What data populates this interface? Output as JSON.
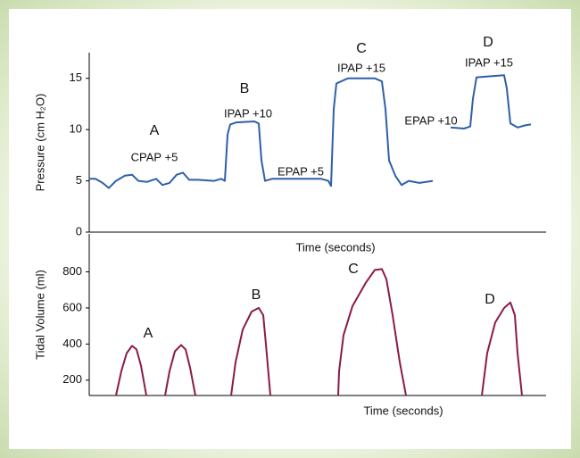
{
  "chart_data": [
    {
      "type": "line",
      "y_label": "Pressure (cm H₂O)",
      "x_label": "Time (seconds)",
      "xlim": [
        0,
        512
      ],
      "ylim": [
        0,
        17.5
      ],
      "yticks": [
        0,
        5,
        10,
        15
      ],
      "annotations": [
        "A",
        "CPAP  +5",
        "B",
        "IPAP +10",
        "EPAP +5",
        "C",
        "IPAP +15",
        "EPAP +10",
        "D",
        "IPAP +15"
      ],
      "series": [
        {
          "color": "#2f5fa8",
          "x": [
            0,
            7,
            15,
            22,
            30,
            40,
            48,
            55,
            65,
            75,
            82,
            90,
            98,
            105,
            112,
            122,
            140,
            148,
            152,
            155,
            158,
            165,
            185,
            190,
            193,
            197,
            205,
            230,
            260,
            268,
            271,
            274,
            277,
            290,
            320,
            328,
            332,
            336,
            343,
            350,
            358,
            370,
            385,
            null,
            405,
            420,
            427,
            430,
            434,
            450,
            465,
            468,
            472,
            480,
            488,
            495
          ],
          "values": [
            5.2,
            5.2,
            4.8,
            4.3,
            5.0,
            5.5,
            5.6,
            5.0,
            4.9,
            5.2,
            4.6,
            4.8,
            5.6,
            5.8,
            5.1,
            5.1,
            5.0,
            5.2,
            5.0,
            9.5,
            10.5,
            10.7,
            10.8,
            10.6,
            7.0,
            5.0,
            5.2,
            5.2,
            5.2,
            5.0,
            4.5,
            12,
            14.5,
            15.0,
            15.0,
            14.7,
            12,
            7,
            5.5,
            4.6,
            5.0,
            4.8,
            5.0,
            null,
            10.2,
            10.1,
            10.3,
            13,
            15.1,
            15.2,
            15.3,
            14,
            10.6,
            10.2,
            10.4,
            10.5
          ]
        }
      ]
    },
    {
      "type": "line",
      "y_label": "Tidal Volume (ml)",
      "x_label": "Time (seconds)",
      "xlim": [
        0,
        512
      ],
      "ylim": [
        115,
        1010
      ],
      "yticks": [
        200,
        400,
        600,
        800
      ],
      "annotations": [
        "A",
        "B",
        "C",
        "D"
      ],
      "series": [
        {
          "color": "#8b1a4a",
          "x": [
            30,
            36,
            42,
            48,
            53,
            58,
            64,
            null,
            85,
            90,
            96,
            103,
            108,
            113,
            119,
            null,
            159,
            164,
            172,
            182,
            190,
            195,
            198,
            203,
            null,
            279,
            280,
            285,
            295,
            310,
            320,
            328,
            333,
            340,
            348,
            355,
            null,
            440,
            446,
            455,
            465,
            472,
            477,
            480,
            485
          ],
          "values": [
            115,
            250,
            350,
            390,
            370,
            280,
            115,
            null,
            115,
            250,
            360,
            395,
            370,
            270,
            115,
            null,
            115,
            300,
            480,
            580,
            600,
            560,
            400,
            115,
            null,
            115,
            250,
            450,
            610,
            740,
            810,
            815,
            760,
            560,
            300,
            115,
            null,
            115,
            350,
            520,
            600,
            630,
            560,
            350,
            115
          ]
        }
      ]
    }
  ]
}
